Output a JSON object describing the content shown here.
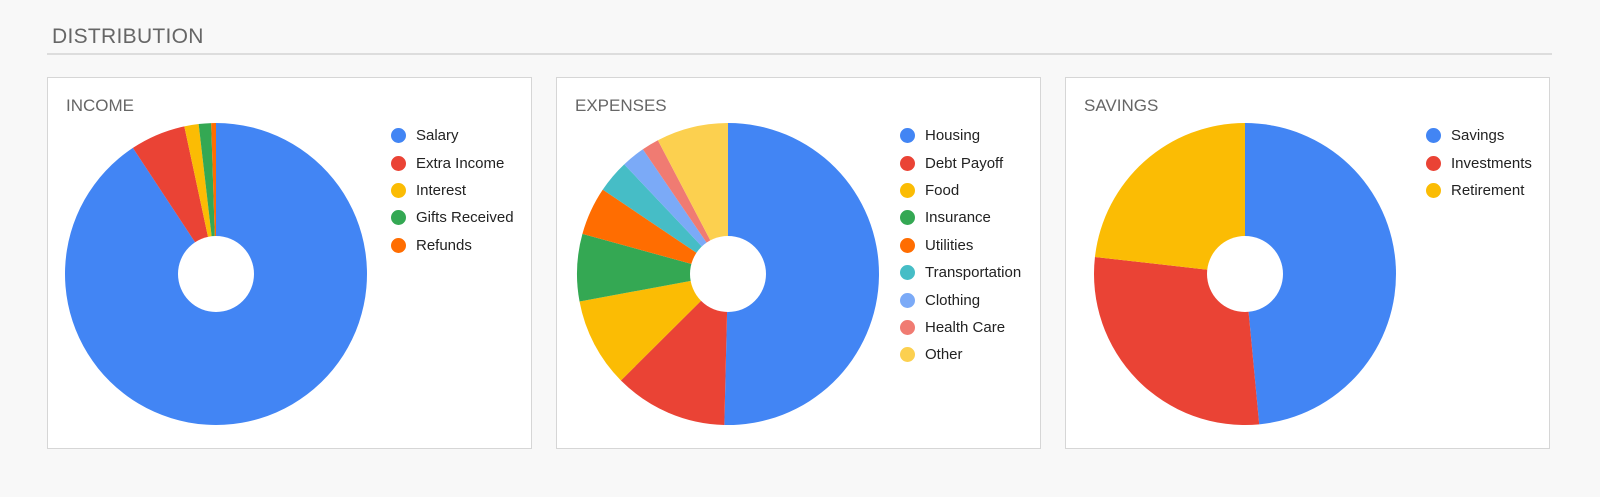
{
  "page": {
    "title": "DISTRIBUTION"
  },
  "chart_data": [
    {
      "type": "pie",
      "title": "INCOME",
      "donut": true,
      "legend_position": "right",
      "slices": [
        {
          "label": "Salary",
          "value": 89.0,
          "color": "#4285F4"
        },
        {
          "label": "Extra Income",
          "value": 5.8,
          "color": "#EA4335"
        },
        {
          "label": "Interest",
          "value": 1.5,
          "color": "#FBBC04"
        },
        {
          "label": "Gifts Received",
          "value": 1.3,
          "color": "#34A853"
        },
        {
          "label": "Refunds",
          "value": 0.5,
          "color": "#FF6D01"
        }
      ]
    },
    {
      "type": "pie",
      "title": "EXPENSES",
      "donut": true,
      "legend_position": "right",
      "slices": [
        {
          "label": "Housing",
          "value": 51.8,
          "color": "#4285F4"
        },
        {
          "label": "Debt Payoff",
          "value": 12.5,
          "color": "#EA4335"
        },
        {
          "label": "Food",
          "value": 9.8,
          "color": "#FBBC04"
        },
        {
          "label": "Insurance",
          "value": 7.4,
          "color": "#34A853"
        },
        {
          "label": "Utilities",
          "value": 5.3,
          "color": "#FF6D01"
        },
        {
          "label": "Transportation",
          "value": 3.6,
          "color": "#46BDC6"
        },
        {
          "label": "Clothing",
          "value": 2.6,
          "color": "#7BAAF7"
        },
        {
          "label": "Health Care",
          "value": 1.9,
          "color": "#F07B72"
        },
        {
          "label": "Other",
          "value": 7.9,
          "color": "#FCD04F"
        }
      ]
    },
    {
      "type": "pie",
      "title": "SAVINGS",
      "donut": true,
      "legend_position": "right",
      "slices": [
        {
          "label": "Savings",
          "value": 48.5,
          "color": "#4285F4"
        },
        {
          "label": "Investments",
          "value": 28.3,
          "color": "#EA4335"
        },
        {
          "label": "Retirement",
          "value": 23.2,
          "color": "#FBBC04"
        }
      ]
    }
  ]
}
